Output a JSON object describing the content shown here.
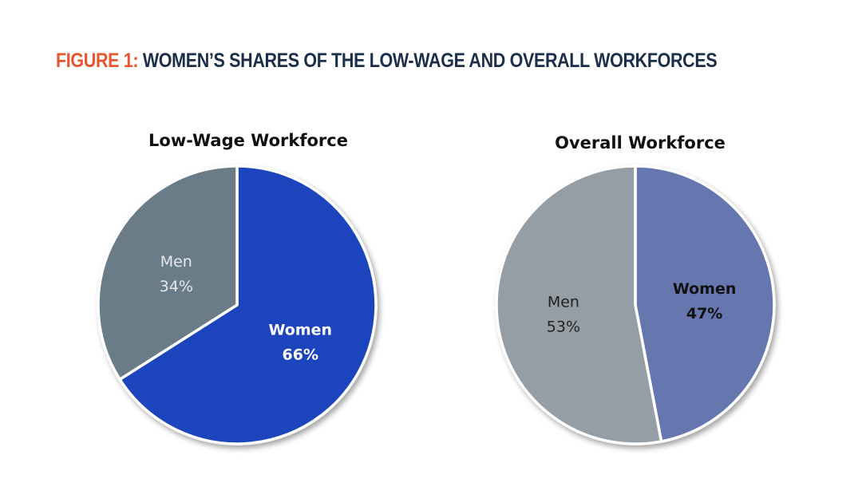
{
  "figure": {
    "prefix": "FIGURE 1:",
    "title": "WOMEN’S SHARES OF THE LOW-WAGE AND OVERALL WORKFORCES"
  },
  "chart_data": [
    {
      "type": "pie",
      "title": "Low-Wage Workforce",
      "slices": [
        {
          "label": "Women",
          "value": 66,
          "value_label": "66%",
          "color": "#1c44bd",
          "text_color": "#ffffff",
          "bold": true
        },
        {
          "label": "Men",
          "value": 34,
          "value_label": "34%",
          "color": "#6b7b88",
          "text_color": "#e6e9ec",
          "bold": false
        }
      ]
    },
    {
      "type": "pie",
      "title": "Overall Workforce",
      "slices": [
        {
          "label": "Women",
          "value": 47,
          "value_label": "47%",
          "color": "#6677b0",
          "text_color": "#111111",
          "bold": true
        },
        {
          "label": "Men",
          "value": 53,
          "value_label": "53%",
          "color": "#959ea4",
          "text_color": "#222222",
          "bold": false
        }
      ]
    }
  ]
}
